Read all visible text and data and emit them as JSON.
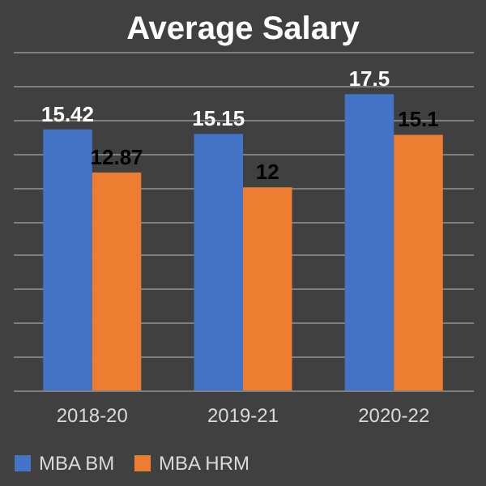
{
  "chart_data": {
    "type": "bar",
    "title": "Average Salary",
    "categories": [
      "2018-20",
      "2019-21",
      "2020-22"
    ],
    "series": [
      {
        "name": "MBA BM",
        "color": "#4472c4",
        "values": [
          15.42,
          15.15,
          17.5
        ]
      },
      {
        "name": "MBA HRM",
        "color": "#ed7d31",
        "values": [
          12.87,
          12,
          15.1
        ]
      }
    ],
    "ylim": [
      0,
      20
    ],
    "grid": "y",
    "tick_labels": "x",
    "data_labels": true,
    "legend": "bottom"
  }
}
